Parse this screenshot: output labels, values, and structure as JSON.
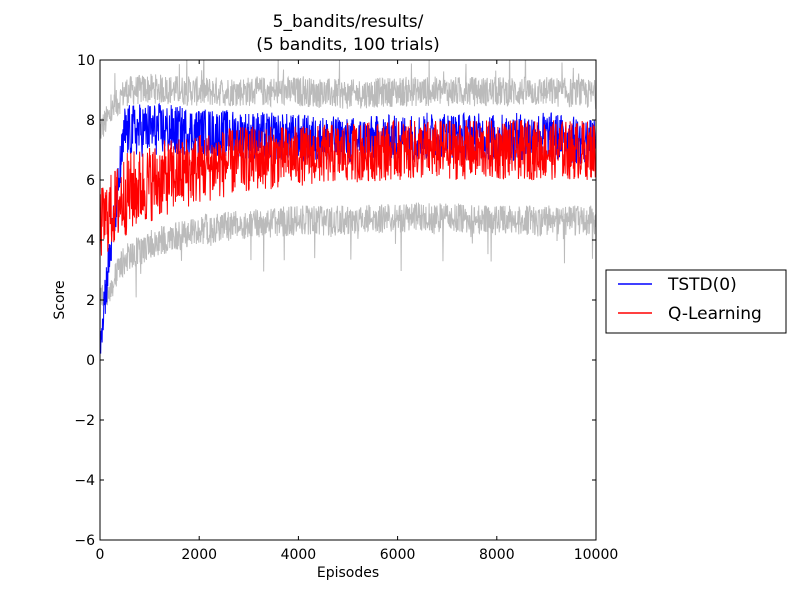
{
  "chart_data": {
    "type": "line",
    "title_lines": [
      "5_bandits/results/",
      "(5 bandits, 100 trials)"
    ],
    "xlabel": "Episodes",
    "ylabel": "Score",
    "xlim": [
      0,
      10000
    ],
    "ylim": [
      -6,
      10
    ],
    "x_ticks": [
      0,
      2000,
      4000,
      6000,
      8000,
      10000
    ],
    "x_tick_labels": [
      "0",
      "2000",
      "4000",
      "6000",
      "8000",
      "10000"
    ],
    "y_ticks": [
      -6,
      -4,
      -2,
      0,
      2,
      4,
      6,
      8,
      10
    ],
    "y_tick_labels": [
      "−6",
      "−4",
      "−2",
      "0",
      "2",
      "4",
      "6",
      "8",
      "10"
    ],
    "grid": false,
    "legend_position": "outside-right",
    "series": [
      {
        "name": "TSTD(0)",
        "color": "#0000ff",
        "x": [
          0,
          500,
          1000,
          2000,
          3000,
          4000,
          5000,
          6000,
          7000,
          8000,
          9000,
          10000
        ],
        "values": [
          0.8,
          7.6,
          7.7,
          7.6,
          7.5,
          7.4,
          7.3,
          7.4,
          7.5,
          7.4,
          7.5,
          7.2
        ],
        "spread": [
          0.8,
          0.9,
          0.9,
          0.8,
          0.8,
          0.8,
          0.8,
          0.8,
          0.8,
          0.8,
          0.8,
          0.8
        ]
      },
      {
        "name": "Q-Learning",
        "color": "#ff0000",
        "x": [
          0,
          500,
          1000,
          2000,
          3000,
          4000,
          5000,
          6000,
          7000,
          8000,
          9000,
          10000
        ],
        "values": [
          4.5,
          5.5,
          5.9,
          6.4,
          6.7,
          6.8,
          6.9,
          7.0,
          7.0,
          7.0,
          7.0,
          7.0
        ],
        "spread": [
          1.2,
          1.4,
          1.3,
          1.2,
          1.1,
          1.0,
          1.0,
          1.0,
          1.0,
          1.0,
          1.0,
          1.0
        ]
      },
      {
        "role": "trial-envelope",
        "color": "#bbbbbb",
        "x": [
          0,
          500,
          1000,
          2000,
          3000,
          4000,
          5000,
          6000,
          7000,
          8000,
          9000,
          10000
        ],
        "upper": [
          7.5,
          8.8,
          8.9,
          8.8,
          8.8,
          8.8,
          8.7,
          8.8,
          8.8,
          8.8,
          8.8,
          8.7
        ],
        "lower": [
          2.0,
          3.5,
          4.0,
          4.5,
          4.7,
          4.8,
          4.8,
          4.9,
          4.9,
          4.8,
          4.8,
          4.8
        ]
      }
    ]
  }
}
